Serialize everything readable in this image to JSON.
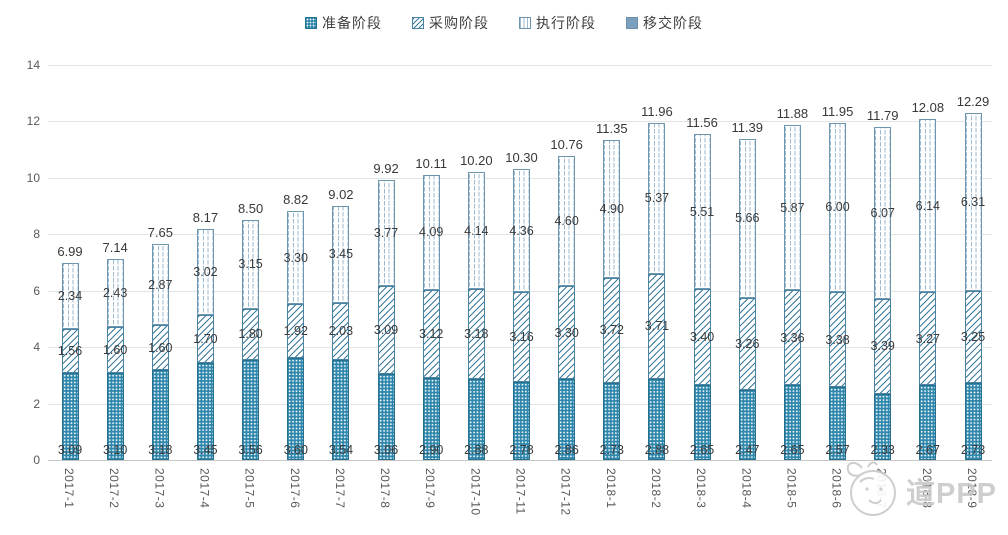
{
  "legend": {
    "items": [
      {
        "label": "准备阶段",
        "pattern": "dots"
      },
      {
        "label": "采购阶段",
        "pattern": "diagonal-hatch"
      },
      {
        "label": "执行阶段",
        "pattern": "vertical-dashes"
      },
      {
        "label": "移交阶段",
        "pattern": "solid"
      }
    ]
  },
  "colors": {
    "bar_teal": "#2e86ab",
    "hatch_blue": "#38799e",
    "dash_blue": "#9cbad0",
    "solid_blue": "#7d9fbe",
    "gridline": "#e3e3e3",
    "axis_text": "#595959",
    "label_text": "#3c3c3c",
    "watermark_gray": "#c9c9c9"
  },
  "chart_data": {
    "type": "bar",
    "stacked": true,
    "title": "",
    "xlabel": "",
    "ylabel": "",
    "ylim": [
      0,
      14
    ],
    "yticks": [
      0,
      2,
      4,
      6,
      8,
      10,
      12,
      14
    ],
    "grid": true,
    "legend_position": "top",
    "categories": [
      "2017-1",
      "2017-2",
      "2017-3",
      "2017-4",
      "2017-5",
      "2017-6",
      "2017-7",
      "2017-8",
      "2017-9",
      "2017-10",
      "2017-11",
      "2017-12",
      "2018-1",
      "2018-2",
      "2018-3",
      "2018-4",
      "2018-5",
      "2018-6",
      "2018-7",
      "2018-8",
      "2018-9"
    ],
    "series": [
      {
        "name": "准备阶段",
        "values": [
          3.09,
          3.1,
          3.18,
          3.45,
          3.56,
          3.6,
          3.54,
          3.06,
          2.9,
          2.88,
          2.78,
          2.86,
          2.73,
          2.88,
          2.65,
          2.47,
          2.65,
          2.57,
          2.33,
          2.67,
          2.73
        ]
      },
      {
        "name": "采购阶段",
        "values": [
          1.56,
          1.6,
          1.6,
          1.7,
          1.8,
          1.92,
          2.03,
          3.09,
          3.12,
          3.18,
          3.16,
          3.3,
          3.72,
          3.71,
          3.4,
          3.26,
          3.36,
          3.38,
          3.39,
          3.27,
          3.25
        ]
      },
      {
        "name": "执行阶段",
        "values": [
          2.34,
          2.43,
          2.87,
          3.02,
          3.15,
          3.3,
          3.45,
          3.77,
          4.09,
          4.14,
          4.36,
          4.6,
          4.9,
          5.37,
          5.51,
          5.66,
          5.87,
          6.0,
          6.07,
          6.14,
          6.31
        ]
      },
      {
        "name": "移交阶段",
        "values": [
          0,
          0,
          0,
          0,
          0,
          0,
          0,
          0,
          0,
          0,
          0,
          0,
          0,
          0,
          0,
          0,
          0,
          0,
          0,
          0,
          0
        ]
      }
    ],
    "totals": [
      6.99,
      7.14,
      7.65,
      8.17,
      8.5,
      8.82,
      9.02,
      9.92,
      10.11,
      10.2,
      10.3,
      10.76,
      11.35,
      11.96,
      11.56,
      11.39,
      11.88,
      11.95,
      11.79,
      12.08,
      12.29
    ]
  },
  "watermark": {
    "text": "道PPP"
  }
}
